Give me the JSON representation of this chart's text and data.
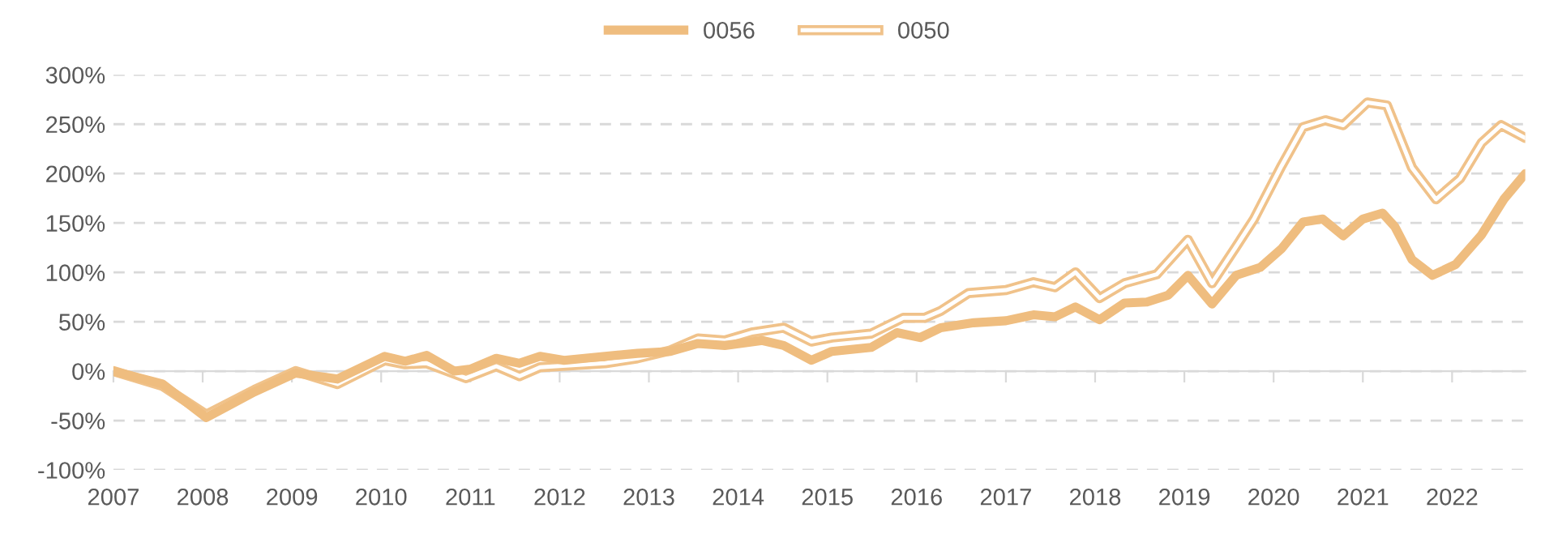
{
  "chart_data": {
    "type": "line",
    "xlim": [
      2007,
      2022.82
    ],
    "xticks": [
      2007,
      2008,
      2009,
      2010,
      2011,
      2012,
      2013,
      2014,
      2015,
      2016,
      2017,
      2018,
      2019,
      2020,
      2021,
      2022
    ],
    "ylim": [
      -100,
      300
    ],
    "yticks": [
      {
        "value": -100,
        "label": "-100%"
      },
      {
        "value": -50,
        "label": "-50%"
      },
      {
        "value": 0,
        "label": "0%"
      },
      {
        "value": 50,
        "label": "50%"
      },
      {
        "value": 100,
        "label": "100%"
      },
      {
        "value": 150,
        "label": "150%"
      },
      {
        "value": 200,
        "label": "200%"
      },
      {
        "value": 250,
        "label": "250%"
      },
      {
        "value": 300,
        "label": "300%"
      }
    ],
    "grid": "y",
    "legend": "top",
    "marker": "none",
    "line_style": "solid",
    "series": [
      {
        "name": "0056",
        "color": "#efbd7f",
        "x": [
          2007.0,
          2007.55,
          2008.04,
          2008.58,
          2009.04,
          2009.51,
          2010.04,
          2010.27,
          2010.51,
          2010.82,
          2011.0,
          2011.29,
          2011.55,
          2011.78,
          2012.05,
          2012.51,
          2012.87,
          2013.24,
          2013.55,
          2013.85,
          2014.27,
          2014.51,
          2014.82,
          2015.05,
          2015.49,
          2015.78,
          2016.04,
          2016.27,
          2016.64,
          2017.0,
          2017.31,
          2017.55,
          2017.78,
          2018.05,
          2018.33,
          2018.58,
          2018.82,
          2019.04,
          2019.31,
          2019.58,
          2019.85,
          2020.09,
          2020.33,
          2020.55,
          2020.78,
          2021.0,
          2021.22,
          2021.36,
          2021.55,
          2021.78,
          2022.04,
          2022.33,
          2022.58,
          2022.82
        ],
        "values": [
          0,
          -13,
          -47,
          -21,
          -2,
          -8,
          15,
          10,
          16,
          0,
          2,
          13,
          8,
          15,
          11,
          15,
          18,
          20,
          28,
          26,
          31,
          26,
          11,
          20,
          24,
          39,
          34,
          44,
          49,
          51,
          57,
          55,
          65,
          52,
          69,
          70,
          77,
          97,
          68,
          97,
          105,
          124,
          151,
          154,
          137,
          154,
          160,
          146,
          113,
          97,
          108,
          138,
          174,
          200
        ]
      },
      {
        "name": "0050",
        "color": "#f0c28a",
        "x": [
          2007.0,
          2007.55,
          2008.04,
          2008.58,
          2009.04,
          2009.51,
          2010.04,
          2010.27,
          2010.51,
          2010.95,
          2011.29,
          2011.55,
          2011.78,
          2012.51,
          2012.87,
          2013.24,
          2013.55,
          2013.85,
          2014.15,
          2014.51,
          2014.82,
          2015.05,
          2015.49,
          2015.85,
          2016.09,
          2016.27,
          2016.58,
          2017.0,
          2017.31,
          2017.55,
          2017.78,
          2018.05,
          2018.33,
          2018.69,
          2019.04,
          2019.31,
          2019.58,
          2019.78,
          2020.09,
          2020.33,
          2020.58,
          2020.78,
          2021.05,
          2021.27,
          2021.55,
          2021.82,
          2022.09,
          2022.33,
          2022.55,
          2022.82
        ],
        "values": [
          0,
          -15,
          -44,
          -19,
          0,
          -13,
          11,
          7,
          8,
          -7,
          5,
          -5,
          4,
          8,
          13,
          21,
          33,
          31,
          39,
          44,
          30,
          34,
          38,
          54,
          54,
          61,
          79,
          82,
          90,
          85,
          100,
          74,
          89,
          98,
          133,
          89,
          126,
          154,
          208,
          247,
          254,
          249,
          272,
          269,
          206,
          174,
          195,
          231,
          249,
          236
        ]
      }
    ]
  }
}
